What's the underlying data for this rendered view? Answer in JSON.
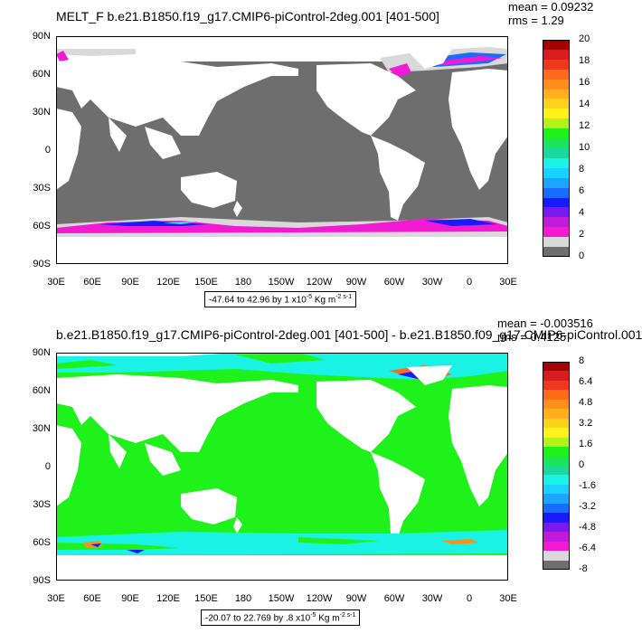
{
  "panels": [
    {
      "title": "MELT_F b.e21.B1850.f19_g17.CMIP6-piControl-2deg.001 [401-500]",
      "stats": {
        "mean": "mean = 0.09232",
        "rms": "rms = 1.29"
      },
      "range_text": "-47.64 to 42.96 by 1 x10",
      "range_exp": "-5",
      "range_unit": " Kg m",
      "range_unit_exp": "-2 s-1",
      "lat_labels": [
        "90N",
        "60N",
        "30N",
        "0",
        "30S",
        "60S",
        "90S"
      ],
      "lon_labels": [
        "30E",
        "60E",
        "90E",
        "120E",
        "150E",
        "180",
        "150W",
        "120W",
        "90W",
        "60W",
        "30W",
        "0",
        "30E"
      ],
      "colorbar": {
        "labels": [
          "20",
          "18",
          "16",
          "14",
          "12",
          "10",
          "8",
          "6",
          "4",
          "2",
          "0"
        ],
        "colors": [
          "#a50000",
          "#d71d1d",
          "#ee3a1a",
          "#ff6b1a",
          "#ff8f1a",
          "#ffb01a",
          "#ffd21a",
          "#fff21a",
          "#b6f21a",
          "#1ff21a",
          "#1ae65c",
          "#1ad9a0",
          "#1af2e6",
          "#1ad2ff",
          "#1aa6ff",
          "#1a6bff",
          "#1a1aff",
          "#7a1af2",
          "#c21ad9",
          "#f21ad2",
          "#d9d9d9",
          "#6e6e6e"
        ]
      }
    },
    {
      "title": "b.e21.B1850.f19_g17.CMIP6-piControl-2deg.001 [401-500] - b.e21.B1850.f09_g17.CMIP6-piControl.001",
      "stats": {
        "mean": "mean = -0.003516",
        "rms": "rms = 0.4125"
      },
      "range_text": "-20.07 to 22.769 by .8 x10",
      "range_exp": "-5",
      "range_unit": " Kg m",
      "range_unit_exp": "-2 s-1",
      "lat_labels": [
        "90N",
        "60N",
        "30N",
        "0",
        "30S",
        "60S",
        "90S"
      ],
      "lon_labels": [
        "30E",
        "60E",
        "90E",
        "120E",
        "150E",
        "180",
        "150W",
        "120W",
        "90W",
        "60W",
        "30W",
        "0",
        "30E"
      ],
      "colorbar": {
        "labels": [
          "8",
          "6.4",
          "4.8",
          "3.2",
          "1.6",
          "0",
          "-1.6",
          "-3.2",
          "-4.8",
          "-6.4",
          "-8"
        ],
        "colors": [
          "#a50000",
          "#d71d1d",
          "#ee3a1a",
          "#ff6b1a",
          "#ff8f1a",
          "#ffb01a",
          "#ffd21a",
          "#fff21a",
          "#b6f21a",
          "#1ff21a",
          "#1ae65c",
          "#1ad9a0",
          "#1af2e6",
          "#1ad2ff",
          "#1aa6ff",
          "#1a6bff",
          "#1a1aff",
          "#7a1af2",
          "#c21ad9",
          "#f21ad2",
          "#d9d9d9",
          "#6e6e6e"
        ]
      }
    }
  ],
  "colors": {
    "land": "#ffffff",
    "ocean_top": "#6e6e6e",
    "ocean_bottom": "#1ff21a",
    "ice_low": "#d9d9d9",
    "band_magenta": "#f21ad2",
    "band_blue": "#1a1aff",
    "band_cyan": "#1af2e6"
  }
}
